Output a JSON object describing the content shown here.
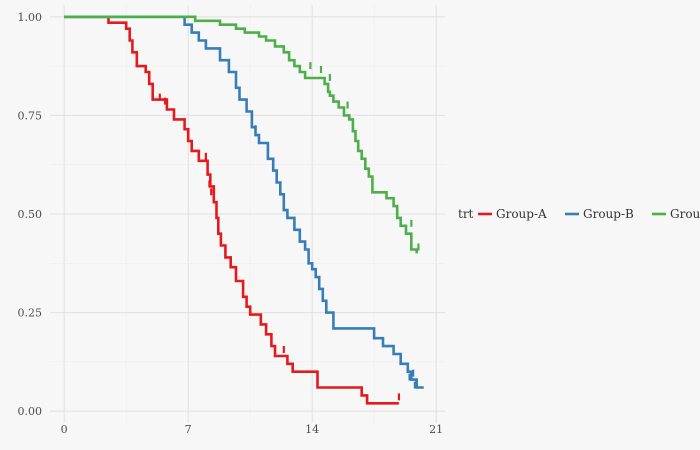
{
  "chart_data": {
    "type": "line",
    "step": true,
    "xlim": [
      -0.8,
      21.5
    ],
    "ylim": [
      -0.03,
      1.03
    ],
    "x_ticks": [
      "0",
      "7",
      "14",
      "21"
    ],
    "y_ticks": [
      "0.00",
      "0.25",
      "0.50",
      "0.75",
      "1.00"
    ],
    "grid": true,
    "legend_position": "right",
    "legend_title": "trt",
    "series": [
      {
        "name": "Group-A",
        "color": "#e41a1c",
        "censored": [
          [
            5.4,
            0.79
          ],
          [
            5.7,
            0.78
          ],
          [
            8.0,
            0.64
          ],
          [
            8.2,
            0.57
          ],
          [
            8.3,
            0.55
          ],
          [
            12.4,
            0.15
          ],
          [
            18.9,
            0.03
          ]
        ],
        "points": [
          [
            0,
            1.0
          ],
          [
            2.5,
            0.985
          ],
          [
            3.5,
            0.97
          ],
          [
            3.7,
            0.94
          ],
          [
            3.85,
            0.91
          ],
          [
            4.1,
            0.875
          ],
          [
            4.6,
            0.86
          ],
          [
            4.8,
            0.83
          ],
          [
            5.0,
            0.79
          ],
          [
            5.6,
            0.79
          ],
          [
            5.8,
            0.765
          ],
          [
            6.2,
            0.74
          ],
          [
            6.8,
            0.715
          ],
          [
            7.0,
            0.685
          ],
          [
            7.2,
            0.66
          ],
          [
            7.6,
            0.635
          ],
          [
            8.1,
            0.6
          ],
          [
            8.25,
            0.57
          ],
          [
            8.45,
            0.53
          ],
          [
            8.6,
            0.49
          ],
          [
            8.7,
            0.45
          ],
          [
            8.85,
            0.42
          ],
          [
            9.1,
            0.39
          ],
          [
            9.4,
            0.365
          ],
          [
            9.7,
            0.33
          ],
          [
            10.1,
            0.29
          ],
          [
            10.3,
            0.265
          ],
          [
            10.5,
            0.245
          ],
          [
            11.1,
            0.22
          ],
          [
            11.4,
            0.195
          ],
          [
            11.7,
            0.165
          ],
          [
            11.9,
            0.14
          ],
          [
            12.6,
            0.12
          ],
          [
            12.9,
            0.1
          ],
          [
            14.3,
            0.06
          ],
          [
            16.4,
            0.06
          ],
          [
            16.8,
            0.04
          ],
          [
            17.1,
            0.02
          ],
          [
            18.9,
            0.02
          ]
        ]
      },
      {
        "name": "Group-B",
        "color": "#377eb8",
        "censored": [
          [
            10.8,
            0.71
          ],
          [
            19.5,
            0.08
          ],
          [
            19.7,
            0.09
          ],
          [
            19.8,
            0.06
          ]
        ],
        "points": [
          [
            0,
            1.0
          ],
          [
            6.6,
            1.0
          ],
          [
            6.8,
            0.98
          ],
          [
            7.2,
            0.96
          ],
          [
            7.6,
            0.94
          ],
          [
            8.0,
            0.92
          ],
          [
            8.8,
            0.89
          ],
          [
            9.3,
            0.86
          ],
          [
            9.7,
            0.82
          ],
          [
            9.9,
            0.79
          ],
          [
            10.3,
            0.76
          ],
          [
            10.6,
            0.72
          ],
          [
            10.8,
            0.7
          ],
          [
            11.0,
            0.68
          ],
          [
            11.5,
            0.64
          ],
          [
            11.8,
            0.61
          ],
          [
            12.0,
            0.58
          ],
          [
            12.2,
            0.55
          ],
          [
            12.4,
            0.51
          ],
          [
            12.6,
            0.49
          ],
          [
            13.0,
            0.46
          ],
          [
            13.3,
            0.43
          ],
          [
            13.6,
            0.41
          ],
          [
            13.8,
            0.375
          ],
          [
            14.0,
            0.36
          ],
          [
            14.2,
            0.34
          ],
          [
            14.4,
            0.31
          ],
          [
            14.6,
            0.28
          ],
          [
            14.8,
            0.25
          ],
          [
            15.2,
            0.21
          ],
          [
            17.2,
            0.21
          ],
          [
            17.5,
            0.185
          ],
          [
            18.0,
            0.165
          ],
          [
            18.6,
            0.145
          ],
          [
            19.0,
            0.12
          ],
          [
            19.4,
            0.1
          ],
          [
            19.6,
            0.08
          ],
          [
            19.9,
            0.06
          ],
          [
            20.3,
            0.06
          ]
        ]
      },
      {
        "name": "Group-C",
        "color": "#4daf4a",
        "censored": [
          [
            13.9,
            0.87
          ],
          [
            14.5,
            0.86
          ],
          [
            15.0,
            0.84
          ],
          [
            16.0,
            0.77
          ],
          [
            17.0,
            0.62
          ],
          [
            19.6,
            0.47
          ],
          [
            20.0,
            0.41
          ]
        ],
        "points": [
          [
            0,
            1.0
          ],
          [
            7.2,
            1.0
          ],
          [
            7.4,
            0.99
          ],
          [
            8.8,
            0.98
          ],
          [
            9.7,
            0.97
          ],
          [
            10.2,
            0.96
          ],
          [
            11.0,
            0.95
          ],
          [
            11.4,
            0.94
          ],
          [
            11.9,
            0.925
          ],
          [
            12.4,
            0.91
          ],
          [
            12.7,
            0.89
          ],
          [
            13.0,
            0.875
          ],
          [
            13.3,
            0.86
          ],
          [
            13.6,
            0.845
          ],
          [
            14.5,
            0.845
          ],
          [
            14.7,
            0.83
          ],
          [
            14.9,
            0.81
          ],
          [
            15.0,
            0.8
          ],
          [
            15.2,
            0.785
          ],
          [
            15.5,
            0.77
          ],
          [
            15.8,
            0.75
          ],
          [
            16.1,
            0.74
          ],
          [
            16.3,
            0.71
          ],
          [
            16.45,
            0.685
          ],
          [
            16.6,
            0.66
          ],
          [
            16.8,
            0.64
          ],
          [
            17.0,
            0.615
          ],
          [
            17.2,
            0.595
          ],
          [
            17.4,
            0.555
          ],
          [
            18.0,
            0.555
          ],
          [
            18.2,
            0.54
          ],
          [
            18.6,
            0.52
          ],
          [
            18.8,
            0.49
          ],
          [
            19.0,
            0.47
          ],
          [
            19.3,
            0.45
          ],
          [
            19.6,
            0.41
          ],
          [
            19.9,
            0.4
          ]
        ]
      }
    ]
  }
}
